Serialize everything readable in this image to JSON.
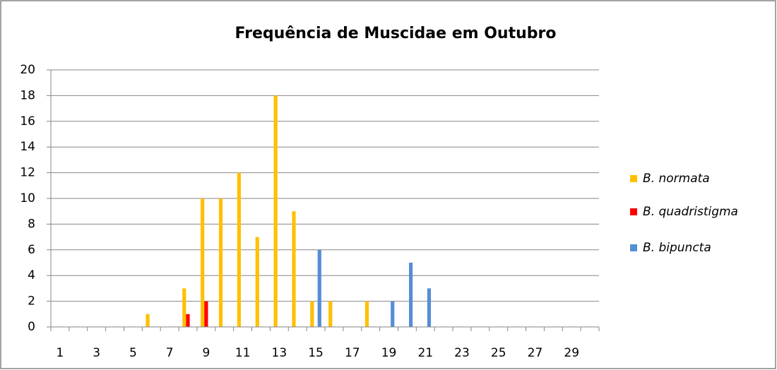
{
  "chart_data": {
    "type": "bar",
    "title": "Frequência de Muscidae em Outubro",
    "categories": [
      1,
      null,
      3,
      null,
      5,
      null,
      7,
      null,
      9,
      null,
      11,
      null,
      13,
      null,
      15,
      null,
      17,
      null,
      19,
      null,
      21,
      null,
      23,
      null,
      25,
      null,
      27,
      null,
      29,
      null
    ],
    "series": [
      {
        "name": "B. normata",
        "color": "#FFC000",
        "values": [
          0,
          0,
          0,
          0,
          0,
          1,
          0,
          3,
          10,
          10,
          12,
          7,
          18,
          9,
          2,
          2,
          0,
          2,
          0,
          0,
          0,
          0,
          0,
          0,
          0,
          0,
          0,
          0,
          0,
          0
        ]
      },
      {
        "name": "B. quadristigma",
        "color": "#FF0000",
        "values": [
          0,
          0,
          0,
          0,
          0,
          0,
          0,
          1,
          2,
          0,
          0,
          0,
          0,
          0,
          0,
          0,
          0,
          0,
          0,
          0,
          0,
          0,
          0,
          0,
          0,
          0,
          0,
          0,
          0,
          0
        ]
      },
      {
        "name": "B. bipuncta",
        "color": "#558ED5",
        "values": [
          0,
          0,
          0,
          0,
          0,
          0,
          0,
          0,
          0,
          0,
          0,
          0,
          0,
          0,
          6,
          0,
          0,
          0,
          2,
          5,
          3,
          0,
          0,
          0,
          0,
          0,
          0,
          0,
          0,
          0
        ]
      }
    ],
    "ylim": [
      0,
      20
    ],
    "yticks": [
      0,
      2,
      4,
      6,
      8,
      10,
      12,
      14,
      16,
      18,
      20
    ],
    "grid": true,
    "legend": "right"
  }
}
